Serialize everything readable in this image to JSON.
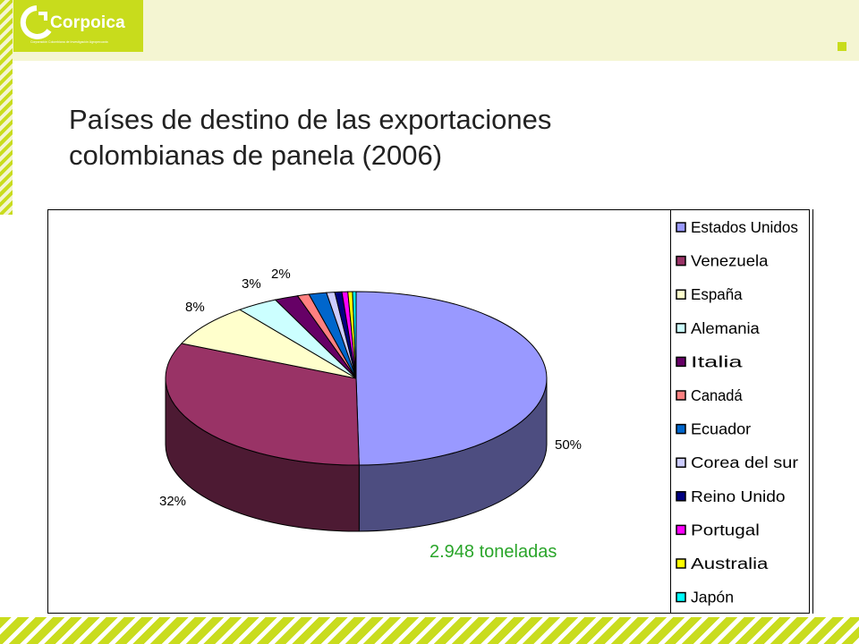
{
  "header": {
    "logo_text": "Corpoica",
    "logo_subtitle": "Corporación Colombiana de Investigación Agropecuaria"
  },
  "colors": {
    "accent": "#c8dc1c",
    "header_bg": "#f4f5d2"
  },
  "chart_data": {
    "type": "pie",
    "title": "Países de destino de las exportaciones colombianas de panela (2006)",
    "title_lines": [
      "Países de destino de las exportaciones",
      "colombianas de panela (2006)"
    ],
    "annotation": "2.948 toneladas",
    "legend_position": "right",
    "categories": [
      "Estados Unidos",
      "Venezuela",
      "España",
      "Alemania",
      "Italia",
      "Canadá",
      "Ecuador",
      "Corea del sur",
      "Reino Unido",
      "Portugal",
      "Australia",
      "Japón"
    ],
    "values": [
      50,
      32,
      8,
      3.5,
      2,
      1,
      1.5,
      0.7,
      0.6,
      0.5,
      0.4,
      0.3
    ],
    "data_labels": [
      "50%",
      "32%",
      "8%",
      "3%",
      "2%",
      "",
      "",
      "",
      "",
      "",
      "",
      ""
    ],
    "colors": [
      "#9999ff",
      "#993366",
      "#ffffcc",
      "#ccffff",
      "#660066",
      "#ff8080",
      "#0066cc",
      "#ccccff",
      "#000080",
      "#ff00ff",
      "#ffff00",
      "#00ffff"
    ]
  }
}
